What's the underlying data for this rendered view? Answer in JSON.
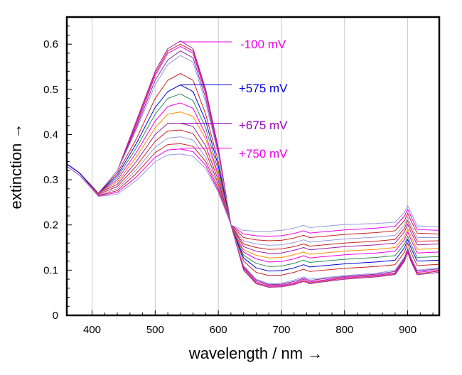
{
  "chart_data": {
    "type": "line",
    "title": "",
    "xlabel": "wavelength / nm →",
    "ylabel": "extinction →",
    "xlim": [
      360,
      950
    ],
    "ylim": [
      0,
      0.66
    ],
    "xticks": [
      {
        "value": 400,
        "label": "400"
      },
      {
        "value": 500,
        "label": "500"
      },
      {
        "value": 600,
        "label": "600"
      },
      {
        "value": 700,
        "label": "700"
      },
      {
        "value": 800,
        "label": "800"
      },
      {
        "value": 900,
        "label": "900"
      }
    ],
    "yticks": [
      {
        "value": 0,
        "label": "0"
      },
      {
        "value": 0.1,
        "label": "0.1"
      },
      {
        "value": 0.2,
        "label": "0.2"
      },
      {
        "value": 0.3,
        "label": "0.3"
      },
      {
        "value": 0.4,
        "label": "0.4"
      },
      {
        "value": 0.5,
        "label": "0.5"
      },
      {
        "value": 0.6,
        "label": "0.6"
      }
    ],
    "grid": "vertical at x ticks",
    "legend": "none",
    "annotations": [
      {
        "text": "-100 mV",
        "color": "#ee00ee",
        "point": [
          540,
          0.605
        ],
        "label_at": [
          362,
          0.605
        ]
      },
      {
        "text": "+575 mV",
        "color": "#0000dd",
        "point": [
          540,
          0.51
        ],
        "label_at": [
          362,
          0.507
        ]
      },
      {
        "text": "+675 mV",
        "color": "#9900bb",
        "point": [
          540,
          0.425
        ],
        "label_at": [
          362,
          0.42
        ]
      },
      {
        "text": "+750 mV",
        "color": "#ee00ee",
        "point": [
          540,
          0.37
        ],
        "label_at": [
          362,
          0.358
        ]
      }
    ],
    "x": [
      360,
      380,
      410,
      440,
      470,
      500,
      520,
      540,
      560,
      580,
      600,
      620,
      640,
      660,
      680,
      700,
      720,
      735,
      745,
      760,
      800,
      850,
      880,
      895,
      900,
      905,
      915,
      950
    ],
    "series": [
      {
        "color": "#9b1fa8",
        "values": [
          0.335,
          0.315,
          0.27,
          0.32,
          0.43,
          0.54,
          0.59,
          0.607,
          0.59,
          0.5,
          0.37,
          0.2,
          0.1,
          0.07,
          0.062,
          0.063,
          0.068,
          0.075,
          0.07,
          0.073,
          0.08,
          0.085,
          0.09,
          0.12,
          0.14,
          0.12,
          0.09,
          0.095
        ]
      },
      {
        "color": "#cc2222",
        "values": [
          0.335,
          0.315,
          0.27,
          0.32,
          0.425,
          0.535,
          0.585,
          0.6,
          0.585,
          0.495,
          0.368,
          0.2,
          0.103,
          0.072,
          0.064,
          0.065,
          0.07,
          0.077,
          0.072,
          0.075,
          0.082,
          0.087,
          0.092,
          0.122,
          0.142,
          0.122,
          0.092,
          0.098
        ]
      },
      {
        "color": "#ee00ee",
        "values": [
          0.335,
          0.315,
          0.27,
          0.32,
          0.42,
          0.53,
          0.58,
          0.595,
          0.58,
          0.49,
          0.365,
          0.2,
          0.106,
          0.075,
          0.066,
          0.067,
          0.072,
          0.08,
          0.074,
          0.077,
          0.084,
          0.089,
          0.094,
          0.125,
          0.145,
          0.125,
          0.095,
          0.1
        ]
      },
      {
        "color": "#7b2f9e",
        "values": [
          0.335,
          0.315,
          0.27,
          0.32,
          0.415,
          0.52,
          0.565,
          0.585,
          0.57,
          0.48,
          0.36,
          0.2,
          0.108,
          0.078,
          0.068,
          0.069,
          0.075,
          0.082,
          0.077,
          0.08,
          0.086,
          0.091,
          0.097,
          0.127,
          0.147,
          0.127,
          0.098,
          0.103
        ]
      },
      {
        "color": "#9999dd",
        "values": [
          0.335,
          0.315,
          0.27,
          0.32,
          0.41,
          0.51,
          0.555,
          0.575,
          0.56,
          0.47,
          0.355,
          0.2,
          0.11,
          0.08,
          0.07,
          0.071,
          0.078,
          0.085,
          0.08,
          0.082,
          0.088,
          0.093,
          0.1,
          0.13,
          0.15,
          0.13,
          0.1,
          0.105
        ]
      },
      {
        "color": "#cc2222",
        "values": [
          0.335,
          0.315,
          0.27,
          0.315,
          0.39,
          0.48,
          0.52,
          0.535,
          0.52,
          0.445,
          0.34,
          0.2,
          0.12,
          0.095,
          0.088,
          0.089,
          0.095,
          0.102,
          0.097,
          0.099,
          0.104,
          0.108,
          0.112,
          0.14,
          0.16,
          0.14,
          0.11,
          0.113
        ]
      },
      {
        "color": "#0000dd",
        "values": [
          0.335,
          0.315,
          0.27,
          0.31,
          0.38,
          0.46,
          0.495,
          0.51,
          0.495,
          0.43,
          0.33,
          0.2,
          0.127,
          0.105,
          0.098,
          0.099,
          0.105,
          0.112,
          0.107,
          0.109,
          0.114,
          0.118,
          0.122,
          0.15,
          0.168,
          0.15,
          0.12,
          0.122
        ]
      },
      {
        "color": "#2e8b57",
        "values": [
          0.33,
          0.31,
          0.27,
          0.305,
          0.37,
          0.445,
          0.48,
          0.49,
          0.475,
          0.415,
          0.32,
          0.2,
          0.133,
          0.115,
          0.108,
          0.109,
          0.115,
          0.122,
          0.117,
          0.119,
          0.124,
          0.128,
          0.132,
          0.158,
          0.175,
          0.158,
          0.128,
          0.13
        ]
      },
      {
        "color": "#ee00ee",
        "values": [
          0.33,
          0.31,
          0.27,
          0.3,
          0.36,
          0.43,
          0.462,
          0.47,
          0.458,
          0.4,
          0.31,
          0.2,
          0.14,
          0.125,
          0.118,
          0.119,
          0.125,
          0.132,
          0.127,
          0.129,
          0.134,
          0.138,
          0.142,
          0.168,
          0.185,
          0.168,
          0.138,
          0.14
        ]
      },
      {
        "color": "#ff8c00",
        "values": [
          0.33,
          0.31,
          0.27,
          0.295,
          0.35,
          0.415,
          0.445,
          0.45,
          0.44,
          0.39,
          0.305,
          0.2,
          0.145,
          0.133,
          0.127,
          0.128,
          0.134,
          0.14,
          0.135,
          0.137,
          0.142,
          0.146,
          0.15,
          0.175,
          0.192,
          0.175,
          0.146,
          0.148
        ]
      },
      {
        "color": "#9b1fa8",
        "values": [
          0.33,
          0.31,
          0.27,
          0.29,
          0.34,
          0.4,
          0.425,
          0.425,
          0.418,
          0.375,
          0.298,
          0.2,
          0.152,
          0.142,
          0.137,
          0.138,
          0.144,
          0.15,
          0.145,
          0.147,
          0.152,
          0.156,
          0.16,
          0.185,
          0.202,
          0.185,
          0.156,
          0.158
        ]
      },
      {
        "color": "#cc2222",
        "values": [
          0.33,
          0.31,
          0.268,
          0.285,
          0.33,
          0.385,
          0.408,
          0.41,
          0.402,
          0.362,
          0.29,
          0.2,
          0.158,
          0.15,
          0.146,
          0.147,
          0.152,
          0.158,
          0.153,
          0.155,
          0.16,
          0.164,
          0.168,
          0.193,
          0.21,
          0.193,
          0.164,
          0.165
        ]
      },
      {
        "color": "#9999dd",
        "values": [
          0.33,
          0.31,
          0.266,
          0.28,
          0.322,
          0.372,
          0.392,
          0.395,
          0.388,
          0.35,
          0.285,
          0.2,
          0.165,
          0.158,
          0.155,
          0.156,
          0.161,
          0.167,
          0.162,
          0.164,
          0.169,
          0.173,
          0.177,
          0.2,
          0.218,
          0.2,
          0.172,
          0.172
        ]
      },
      {
        "color": "#cc2222",
        "values": [
          0.33,
          0.31,
          0.265,
          0.276,
          0.314,
          0.36,
          0.378,
          0.38,
          0.374,
          0.34,
          0.28,
          0.2,
          0.172,
          0.167,
          0.165,
          0.166,
          0.171,
          0.177,
          0.172,
          0.174,
          0.179,
          0.183,
          0.187,
          0.21,
          0.226,
          0.21,
          0.182,
          0.18
        ]
      },
      {
        "color": "#ee00ee",
        "values": [
          0.33,
          0.31,
          0.264,
          0.272,
          0.306,
          0.35,
          0.366,
          0.368,
          0.362,
          0.332,
          0.275,
          0.2,
          0.18,
          0.176,
          0.175,
          0.176,
          0.181,
          0.187,
          0.182,
          0.184,
          0.189,
          0.193,
          0.197,
          0.22,
          0.235,
          0.22,
          0.19,
          0.188
        ]
      },
      {
        "color": "#9999dd",
        "values": [
          0.33,
          0.31,
          0.263,
          0.268,
          0.298,
          0.34,
          0.355,
          0.357,
          0.352,
          0.325,
          0.272,
          0.2,
          0.188,
          0.186,
          0.186,
          0.188,
          0.193,
          0.199,
          0.194,
          0.196,
          0.201,
          0.203,
          0.206,
          0.228,
          0.243,
          0.228,
          0.198,
          0.196
        ]
      }
    ]
  }
}
